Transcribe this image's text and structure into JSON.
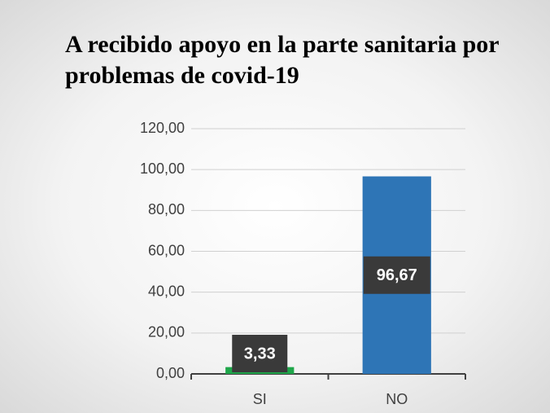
{
  "chart_data": {
    "type": "bar",
    "title": "A recibido apoyo en la parte sanitaria por problemas de covid-19",
    "categories": [
      "SI",
      "NO"
    ],
    "values": [
      3.33,
      96.67
    ],
    "value_labels": [
      "3,33",
      "96,67"
    ],
    "colors": [
      "#1fa64a",
      "#2e75b6"
    ],
    "ylim": [
      0,
      120
    ],
    "yticks": [
      {
        "value": 0,
        "label": "0,00"
      },
      {
        "value": 20,
        "label": "20,00"
      },
      {
        "value": 40,
        "label": "40,00"
      },
      {
        "value": 60,
        "label": "60,00"
      },
      {
        "value": 80,
        "label": "80,00"
      },
      {
        "value": 100,
        "label": "100,00"
      },
      {
        "value": 120,
        "label": "120,00"
      }
    ],
    "grid": true
  }
}
